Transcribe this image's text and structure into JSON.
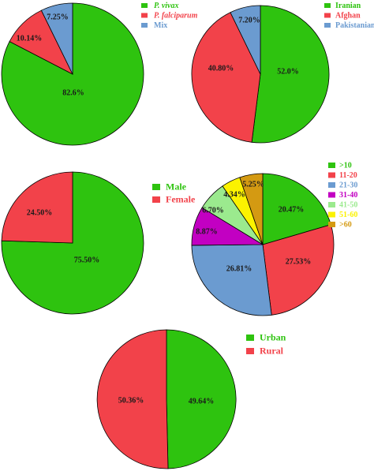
{
  "colors": {
    "green": "#2ec30f",
    "red": "#f2424a",
    "blue": "#6b9bd0",
    "purple": "#c200c2",
    "lightgreen": "#9bea8e",
    "yellow": "#fbf200",
    "gold": "#d49a12"
  },
  "chart_data": [
    {
      "type": "pie",
      "title": "",
      "legend_position": "top-right",
      "slices": [
        {
          "label": "P. vivax",
          "value": 82.6,
          "text": "82.6%",
          "color": "green",
          "italic": true
        },
        {
          "label": "P. falciparum",
          "value": 10.14,
          "text": "10.14%",
          "color": "red",
          "italic": true
        },
        {
          "label": "Mix",
          "value": 7.25,
          "text": "7.25%",
          "color": "blue",
          "italic": false
        }
      ]
    },
    {
      "type": "pie",
      "title": "",
      "legend_position": "top-right",
      "slices": [
        {
          "label": "Iranian",
          "value": 52.0,
          "text": "52.0%",
          "color": "green",
          "italic": false
        },
        {
          "label": "Afghan",
          "value": 40.8,
          "text": "40.80%",
          "color": "red",
          "italic": false
        },
        {
          "label": "Pakistanian",
          "value": 7.2,
          "text": "7.20%",
          "color": "blue",
          "italic": false
        }
      ]
    },
    {
      "type": "pie",
      "title": "",
      "legend_position": "right",
      "slices": [
        {
          "label": "Male",
          "value": 75.5,
          "text": "75.50%",
          "color": "green",
          "italic": false
        },
        {
          "label": "Female",
          "value": 24.5,
          "text": "24.50%",
          "color": "red",
          "italic": false
        }
      ]
    },
    {
      "type": "pie",
      "title": "",
      "legend_position": "top-right",
      "slices": [
        {
          "label": ">10",
          "value": 20.47,
          "text": "20.47%",
          "color": "green",
          "italic": false
        },
        {
          "label": "11-20",
          "value": 27.53,
          "text": "27.53%",
          "color": "red",
          "italic": false
        },
        {
          "label": "21-30",
          "value": 26.81,
          "text": "26.81%",
          "color": "blue",
          "italic": false
        },
        {
          "label": "31-40",
          "value": 8.87,
          "text": "8.87%",
          "color": "purple",
          "italic": false
        },
        {
          "label": "41-50",
          "value": 6.7,
          "text": "6.70%",
          "color": "lightgreen",
          "italic": false
        },
        {
          "label": "51-60",
          "value": 4.34,
          "text": "4.34%",
          "color": "yellow",
          "italic": false
        },
        {
          "label": ">60",
          "value": 5.25,
          "text": "5.25%",
          "color": "gold",
          "italic": false
        }
      ]
    },
    {
      "type": "pie",
      "title": "",
      "legend_position": "top-right",
      "slices": [
        {
          "label": "Urban",
          "value": 49.64,
          "text": "49.64%",
          "color": "green",
          "italic": false
        },
        {
          "label": "Rural",
          "value": 50.36,
          "text": "50.36%",
          "color": "red",
          "italic": false
        }
      ]
    }
  ]
}
